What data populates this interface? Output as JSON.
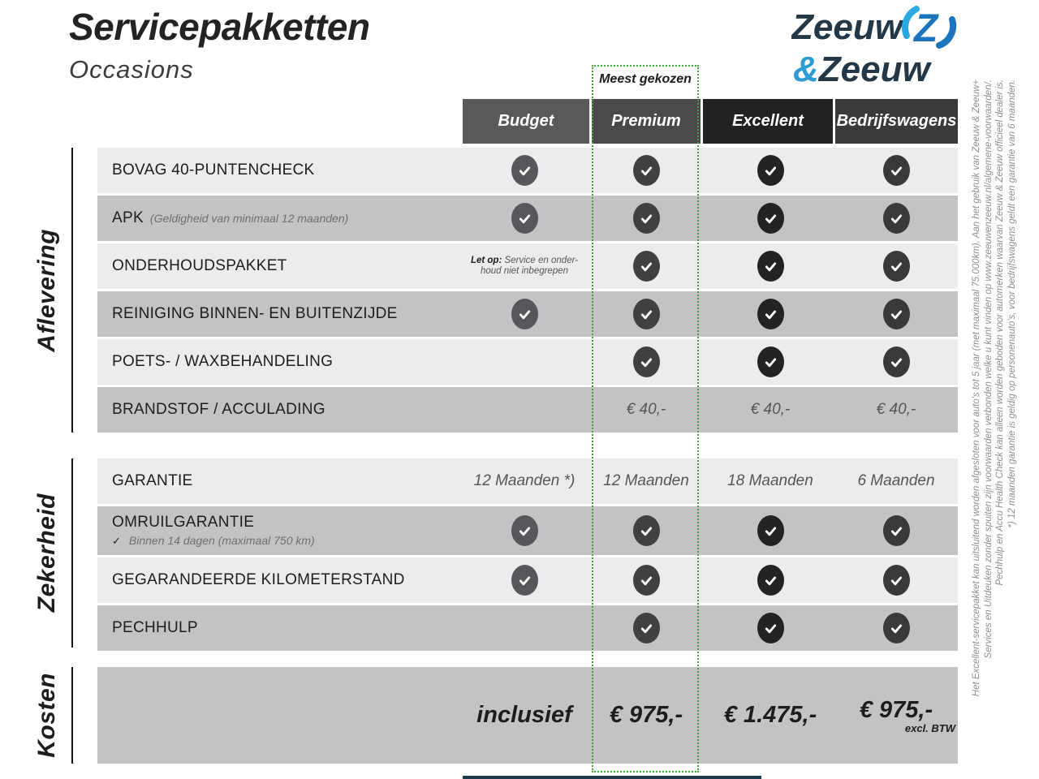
{
  "page": {
    "title": "Servicepakketten",
    "subtitle": "Occasions"
  },
  "logo": {
    "word1": "Zeeuw",
    "ampersand": "&",
    "word2": "Zeeuw",
    "navy": "#233746",
    "blue": "#2c9bd6",
    "light_blue": "#29a9e1",
    "dark_blue": "#1b75bc"
  },
  "most_chosen_label": "Meest gekozen",
  "accent_green": "#3ba43a",
  "columns": [
    {
      "key": "budget",
      "label": "Budget",
      "header_bg": "#58595b",
      "check_bg": "#56575a"
    },
    {
      "key": "premium",
      "label": "Premium",
      "header_bg": "#4a4a4c",
      "check_bg": "#404043"
    },
    {
      "key": "excellent",
      "label": "Excellent",
      "header_bg": "#222224",
      "check_bg": "#232325"
    },
    {
      "key": "bedrijfswagens",
      "label": "Bedrijfswagens",
      "header_bg": "#3a3a3c",
      "check_bg": "#39393b"
    }
  ],
  "sections": [
    {
      "key": "aflevering",
      "label": "Aflevering",
      "rows": [
        {
          "label": "BOVAG 40-PUNTENCHECK",
          "shade": "light",
          "cells": [
            {
              "type": "check"
            },
            {
              "type": "check"
            },
            {
              "type": "check"
            },
            {
              "type": "check"
            }
          ]
        },
        {
          "label": "APK",
          "label_note": "(Geldigheid van minimaal 12 maanden)",
          "shade": "dark",
          "cells": [
            {
              "type": "check"
            },
            {
              "type": "check"
            },
            {
              "type": "check"
            },
            {
              "type": "check"
            }
          ]
        },
        {
          "label": "ONDERHOUDSPAKKET",
          "shade": "light",
          "cells": [
            {
              "type": "note",
              "lead": "Let op:",
              "line1": " Service en onder-",
              "line2": "houd niet inbegrepen"
            },
            {
              "type": "check"
            },
            {
              "type": "check"
            },
            {
              "type": "check"
            }
          ]
        },
        {
          "label": "REINIGING BINNEN- EN BUITENZIJDE",
          "shade": "dark",
          "cells": [
            {
              "type": "check"
            },
            {
              "type": "check"
            },
            {
              "type": "check"
            },
            {
              "type": "check"
            }
          ]
        },
        {
          "label": "POETS- / WAXBEHANDELING",
          "shade": "light",
          "cells": [
            {
              "type": "empty"
            },
            {
              "type": "check"
            },
            {
              "type": "check"
            },
            {
              "type": "check"
            }
          ]
        },
        {
          "label": "BRANDSTOF / ACCULADING",
          "shade": "dark",
          "cells": [
            {
              "type": "empty"
            },
            {
              "type": "text",
              "value": "€ 40,-"
            },
            {
              "type": "text",
              "value": "€ 40,-"
            },
            {
              "type": "text",
              "value": "€ 40,-"
            }
          ]
        }
      ]
    },
    {
      "key": "zekerheid",
      "label": "Zekerheid",
      "rows": [
        {
          "label": "GARANTIE",
          "shade": "light",
          "cells": [
            {
              "type": "text",
              "value": "12 Maanden *)"
            },
            {
              "type": "text",
              "value": "12 Maanden"
            },
            {
              "type": "text",
              "value": "18 Maanden"
            },
            {
              "type": "text",
              "value": "6 Maanden"
            }
          ]
        },
        {
          "label": "OMRUILGARANTIE",
          "shade": "dark",
          "tall": true,
          "sub_check": "✓",
          "sub_text": "Binnen 14 dagen (maximaal 750 km)",
          "cells": [
            {
              "type": "check"
            },
            {
              "type": "check"
            },
            {
              "type": "check"
            },
            {
              "type": "check"
            }
          ]
        },
        {
          "label": "GEGARANDEERDE KILOMETERSTAND",
          "shade": "light",
          "cells": [
            {
              "type": "check"
            },
            {
              "type": "check"
            },
            {
              "type": "check"
            },
            {
              "type": "check"
            }
          ]
        },
        {
          "label": "PECHHULP",
          "shade": "dark",
          "cells": [
            {
              "type": "empty"
            },
            {
              "type": "check"
            },
            {
              "type": "check"
            },
            {
              "type": "check"
            }
          ]
        }
      ]
    },
    {
      "key": "kosten",
      "label": "Kosten",
      "rows": [
        {
          "label": "",
          "shade": "dark",
          "kosten": true,
          "cells": [
            {
              "type": "price",
              "value": "inclusief"
            },
            {
              "type": "price",
              "value": "€ 975,-"
            },
            {
              "type": "price",
              "value": "€ 1.475,-"
            },
            {
              "type": "price",
              "value": "€ 975,-",
              "sub": "excl. BTW"
            }
          ]
        }
      ]
    }
  ],
  "footnotes": [
    "Het Excellent-servicepakket kan uitsluitend worden afgesloten voor auto's tot 5 jaar (met maximaal 75.000km). Aan het gebruik van Zeeuw & Zeeuw+",
    "Services en Uitdeuken zonder spuiten zijn voorwaarden verbonden welke u kunt vinden op www.zeeuwenzeeuw.nl/algemene-voorwaarden/.",
    "Pechhulp en Accu Health Check kan alleen worden geboden voor automerken waarvan Zeeuw & Zeeuw officieel dealer is.",
    "*) 12 maanden garantie is geldig op personenauto's, voor bedrijfswagens geldt een garantie van 6 maanden."
  ]
}
